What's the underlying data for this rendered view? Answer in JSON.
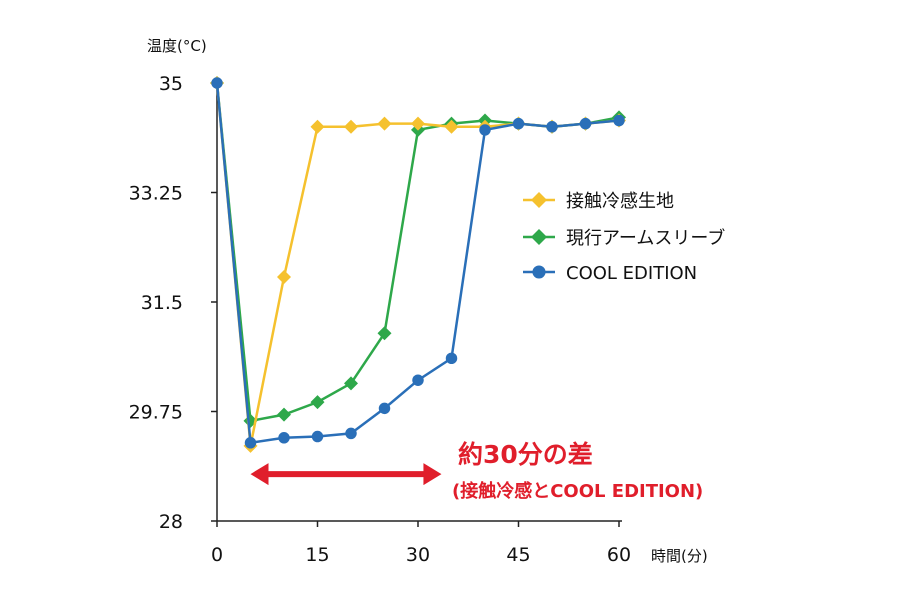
{
  "chart_data": {
    "type": "line",
    "ylabel": "温度(°C)",
    "xlabel": "時間(分)",
    "xlim": [
      0,
      60
    ],
    "ylim": [
      28,
      35
    ],
    "xticks": [
      "0",
      "15",
      "30",
      "45",
      "60"
    ],
    "yticks": [
      "35",
      "33.25",
      "31.5",
      "29.75",
      "28"
    ],
    "grid": false,
    "legend_position": "right",
    "series": [
      {
        "name": "接触冷感生地",
        "color": "#f5c12e",
        "marker": "diamond",
        "x": [
          0,
          5,
          10,
          15,
          20,
          25,
          30,
          35,
          40,
          45,
          50,
          55,
          60
        ],
        "y": [
          35.0,
          29.2,
          31.9,
          34.3,
          34.3,
          34.35,
          34.35,
          34.3,
          34.3,
          34.35,
          34.3,
          34.35,
          34.4
        ]
      },
      {
        "name": "現行アームスリーブ",
        "color": "#2ea84a",
        "marker": "diamond",
        "x": [
          0,
          5,
          10,
          15,
          20,
          25,
          30,
          35,
          40,
          45,
          50,
          55,
          60
        ],
        "y": [
          35.0,
          29.6,
          29.7,
          29.9,
          30.2,
          31.0,
          34.25,
          34.35,
          34.4,
          34.35,
          34.3,
          34.35,
          34.45
        ]
      },
      {
        "name": "COOL EDITION",
        "color": "#2a6fb8",
        "marker": "circle",
        "x": [
          0,
          5,
          10,
          15,
          20,
          25,
          30,
          35,
          40,
          45,
          50,
          55,
          60
        ],
        "y": [
          35.0,
          29.25,
          29.33,
          29.35,
          29.4,
          29.8,
          30.25,
          30.6,
          34.25,
          34.35,
          34.3,
          34.35,
          34.4
        ]
      }
    ],
    "annotation": {
      "main": "約30分の差",
      "sub": "(接触冷感とCOOL EDITION)",
      "color": "#e01e2b",
      "arrow_x": [
        5,
        33.5
      ],
      "arrow_y": 28.75
    }
  }
}
